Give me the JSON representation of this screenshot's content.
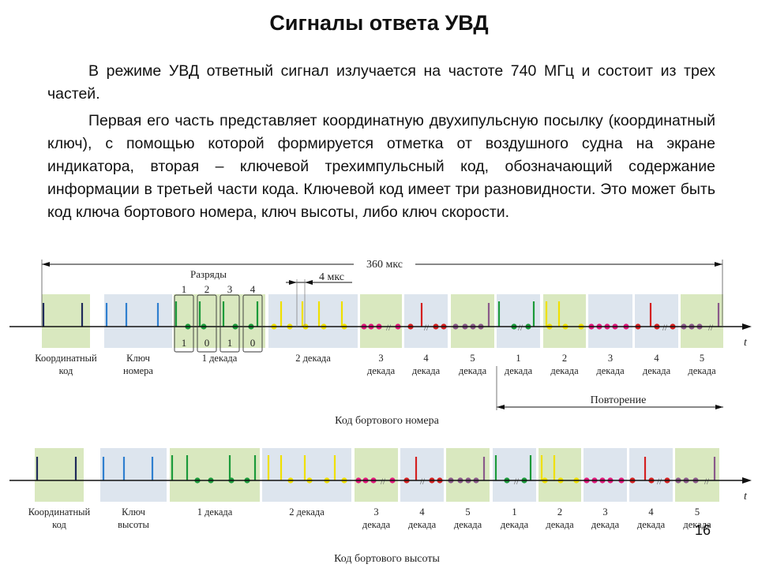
{
  "title": "Сигналы ответа УВД",
  "paragraphs": [
    "В режиме УВД ответный сигнал излучается на частоте 740 МГц и состоит из трех частей.",
    "Первая его часть представляет координатную двухипульсную посылку (координатный ключ), с помощью которой формируется отметка от воздушного судна на экране индикатора, вторая – ключевой трехимпульсный код, обозначающий содержание информации в третьей части кода. Ключевой код имеет три  разновидности. Это может быть код ключа бортового номера, ключ высоты, либо ключ скорости."
  ],
  "slide_number": "16",
  "colors": {
    "green_bg": "#d9e8bf",
    "blue_bg": "#dde5ee",
    "navy": "#1f2a5a",
    "blue": "#2f7fcf",
    "green": "#1b9a3a",
    "yellow": "#f0e000",
    "magenta": "#e0187a",
    "red": "#d42020",
    "purple": "#8a5a8a"
  },
  "diagram1": {
    "total_label": "360 мкс",
    "bits_label": "Разряды",
    "bit_numbers": [
      "1",
      "2",
      "3",
      "4"
    ],
    "bit_values": [
      "1",
      "0",
      "1",
      "0"
    ],
    "interval_label": "4 мкс",
    "axis_label": "t",
    "segment_labels": [
      [
        "Координатный",
        "код"
      ],
      [
        "Ключ",
        "номера"
      ],
      [
        "1 декада"
      ],
      [
        "2 декада"
      ],
      [
        "3",
        "декада"
      ],
      [
        "4",
        "декада"
      ],
      [
        "5",
        "декада"
      ],
      [
        "1",
        "декада"
      ],
      [
        "2",
        "декада"
      ],
      [
        "3",
        "декада"
      ],
      [
        "4",
        "декада"
      ],
      [
        "5",
        "декада"
      ]
    ],
    "repeat_label": "Повторение",
    "caption": "Код бортового номера"
  },
  "diagram2": {
    "axis_label": "t",
    "segment_labels": [
      [
        "Координатный",
        "код"
      ],
      [
        "Ключ",
        "высоты"
      ],
      [
        "1 декада"
      ],
      [
        "2 декада"
      ],
      [
        "3",
        "декада"
      ],
      [
        "4",
        "декада"
      ],
      [
        "5",
        "декада"
      ],
      [
        "1",
        "декада"
      ],
      [
        "2",
        "декада"
      ],
      [
        "3",
        "декада"
      ],
      [
        "4",
        "декада"
      ],
      [
        "5",
        "декада"
      ]
    ],
    "caption": "Код бортового высоты"
  }
}
